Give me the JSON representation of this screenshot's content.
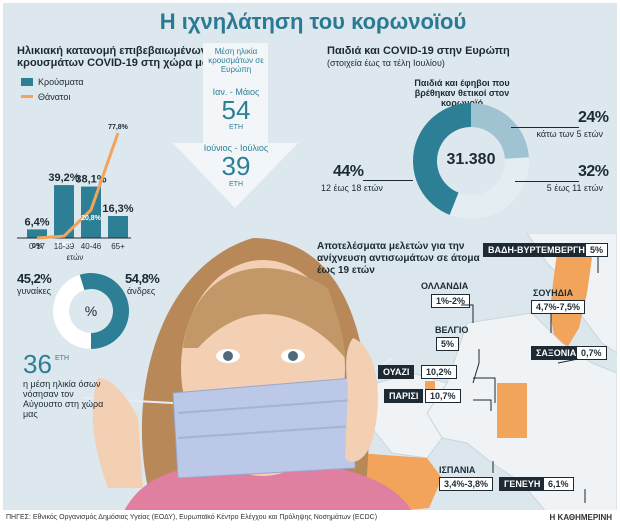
{
  "title": "Η ιχνηλάτηση του κορωνοϊού",
  "footer": "ΠΗΓΕΣ: Εθνικός Οργανισμός Δημόσιας Υγείας (ΕΟΔΥ), Ευρωπαϊκό Κέντρο Ελέγχου και Πρόληψης Νοσημάτων (ECDC)",
  "brand": "Η ΚΑΘΗΜΕΡΙΝΗ",
  "colors": {
    "teal": "#2d7f96",
    "orange": "#f2a55a",
    "light_teal": "#9fc3d0",
    "pale": "#e3edf2",
    "dark": "#1d2a33"
  },
  "age_chart": {
    "title_line1": "Ηλικιακή κατανομή επιβεβαιωμένων",
    "title_line2": "κρουσμάτων COVID-19 στη χώρα μας",
    "legend_cases": "Κρούσματα",
    "legend_deaths": "Θάνατοι",
    "axis_label": "ετών"
  },
  "chart_data": [
    {
      "type": "bar",
      "categories": [
        "0-17",
        "18-39",
        "40-46",
        "65+"
      ],
      "series": [
        {
          "name": "Κρούσματα",
          "values": [
            6.4,
            39.2,
            38.1,
            16.3
          ],
          "labels": [
            "6,4%",
            "39,2%",
            "38,1%",
            "16,3%"
          ]
        },
        {
          "name": "Θάνατοι",
          "values": [
            0,
            1.4,
            20.8,
            77.8
          ],
          "labels": [
            "0%",
            "1,4%",
            "20,8%",
            "77,8%"
          ]
        }
      ],
      "xlabel": "ετών",
      "ylim": [
        0,
        80
      ]
    },
    {
      "type": "pie",
      "labels": [
        "γυναίκες",
        "άνδρες"
      ],
      "values": [
        45.2,
        54.8
      ],
      "value_labels": [
        "45,2%",
        "54,8%"
      ],
      "center_label": "%"
    },
    {
      "type": "pie",
      "title": "Παιδιά και έφηβοι που βρέθηκαν θετικοί στον κορωνοϊό",
      "total_label": "31.380",
      "labels": [
        "κάτω των 5 ετών",
        "5 έως 11 ετών",
        "12 έως 18 ετών"
      ],
      "values": [
        24,
        32,
        44
      ],
      "value_labels": [
        "24%",
        "32%",
        "44%"
      ]
    }
  ],
  "mean_age": {
    "heading": "Μέση ηλικία κρουσμάτων σε Ευρώπη",
    "period1": "Ιαν. - Μάιος",
    "value1": "54",
    "unit1": "ΕΤΗ",
    "period2": "Ιούνιος - Ιούλιος",
    "value2": "39",
    "unit2": "ΕΤΗ"
  },
  "gender": {
    "female_pct": "45,2%",
    "female_label": "γυναίκες",
    "male_pct": "54,8%",
    "male_label": "άνδρες",
    "center": "%"
  },
  "greece_age": {
    "value": "36",
    "unit": "ΕΤΗ",
    "desc": "η μέση ηλικία όσων νόσησαν τον Αύγουστο στη χώρα μας"
  },
  "europe": {
    "title": "Παιδιά και COVID-19 στην Ευρώπη",
    "subtitle": "(στοιχεία έως τα τέλη Ιουλίου)",
    "donut_title": "Παιδιά και έφηβοι που βρέθηκαν θετικοί στον κορωνοϊό",
    "total": "31.380",
    "seg1_pct": "24%",
    "seg1_label": "κάτω των 5 ετών",
    "seg2_pct": "32%",
    "seg2_label": "5 έως 11 ετών",
    "seg3_pct": "44%",
    "seg3_label": "12 έως 18 ετών"
  },
  "antibody": {
    "title": "Αποτελέσματα μελετών για την ανίχνευση αντισωμάτων σε άτομα έως 19 ετών",
    "studies": [
      {
        "name": "ΒΑΔΗ-ΒΥΡΤΕΜΒΕΡΓΗ",
        "value": "5%"
      },
      {
        "name": "ΟΛΛΑΝΔΙΑ",
        "value": "1%-2%"
      },
      {
        "name": "ΣΟΥΗΔΙΑ",
        "value": "4,7%-7,5%"
      },
      {
        "name": "ΒΕΛΓΙΟ",
        "value": "5%"
      },
      {
        "name": "ΣΑΞΟΝΙΑ",
        "value": "0,7%"
      },
      {
        "name": "ΟΥΑΖΙ",
        "value": "10,2%"
      },
      {
        "name": "ΠΑΡΙΣΙ",
        "value": "10,7%"
      },
      {
        "name": "ΙΣΠΑΝΙΑ",
        "value": "3,4%-3,8%"
      },
      {
        "name": "ΓΕΝΕΥΗ",
        "value": "6,1%"
      }
    ]
  }
}
